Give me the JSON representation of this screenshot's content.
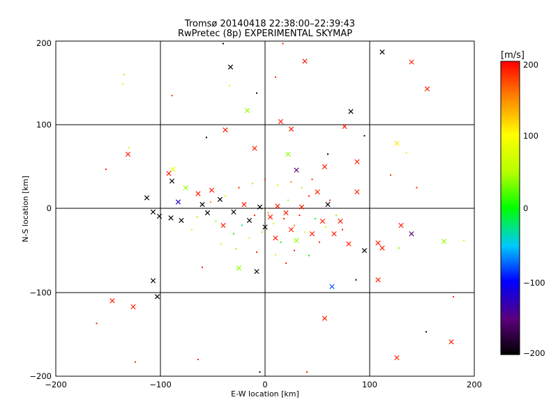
{
  "chart_data": {
    "type": "scatter",
    "title": "Tromsø 20140418 22:38:00–22:39:43",
    "subtitle": "RwPretec (8p) EXPERIMENTAL SKYMAP",
    "xlabel": "E-W location [km]",
    "ylabel": "N-S location [km]",
    "xlim": [
      -200,
      200
    ],
    "ylim": [
      -200,
      200
    ],
    "xticks": [
      "−200",
      "−100",
      "0",
      "100",
      "200"
    ],
    "yticks": [
      "−200",
      "−100",
      "0",
      "100",
      "200"
    ],
    "grid": true,
    "colorbar": {
      "label": "[m/s]",
      "range": [
        -200,
        200
      ],
      "ticks": [
        "−200",
        "−100",
        "0",
        "100",
        "200"
      ]
    },
    "series_note": "crosses and dots colored by velocity",
    "x_markers": [
      {
        "x": 112,
        "y": 187,
        "v": -200
      },
      {
        "x": 140,
        "y": 175,
        "v": 190
      },
      {
        "x": 38,
        "y": 176,
        "v": 190
      },
      {
        "x": -33,
        "y": 169,
        "v": -200
      },
      {
        "x": 155,
        "y": 143,
        "v": 190
      },
      {
        "x": -17,
        "y": 117,
        "v": 40
      },
      {
        "x": 82,
        "y": 116,
        "v": -200
      },
      {
        "x": 15,
        "y": 104,
        "v": 190
      },
      {
        "x": 76,
        "y": 98,
        "v": 190
      },
      {
        "x": -38,
        "y": 94,
        "v": 190
      },
      {
        "x": 25,
        "y": 95,
        "v": 190
      },
      {
        "x": -10,
        "y": 72,
        "v": 190
      },
      {
        "x": 126,
        "y": 78,
        "v": 110
      },
      {
        "x": -131,
        "y": 65,
        "v": 190
      },
      {
        "x": 22,
        "y": 65,
        "v": 40
      },
      {
        "x": 88,
        "y": 56,
        "v": 190
      },
      {
        "x": -88,
        "y": 47,
        "v": 90
      },
      {
        "x": -92,
        "y": 42,
        "v": 190
      },
      {
        "x": 57,
        "y": 50,
        "v": 190
      },
      {
        "x": 30,
        "y": 46,
        "v": -150
      },
      {
        "x": -89,
        "y": 33,
        "v": -200
      },
      {
        "x": -113,
        "y": 13,
        "v": -200
      },
      {
        "x": -76,
        "y": 25,
        "v": 40
      },
      {
        "x": -83,
        "y": 8,
        "v": -120
      },
      {
        "x": -64,
        "y": 18,
        "v": 190
      },
      {
        "x": -51,
        "y": 22,
        "v": 190
      },
      {
        "x": 88,
        "y": 20,
        "v": 190
      },
      {
        "x": -107,
        "y": -4,
        "v": -200
      },
      {
        "x": -101,
        "y": -9,
        "v": -200
      },
      {
        "x": -90,
        "y": -11,
        "v": -200
      },
      {
        "x": -80,
        "y": -14,
        "v": -200
      },
      {
        "x": -43,
        "y": 11,
        "v": -200
      },
      {
        "x": -30,
        "y": -4,
        "v": -200
      },
      {
        "x": -15,
        "y": -14,
        "v": -200
      },
      {
        "x": -5,
        "y": 2,
        "v": -200
      },
      {
        "x": 0,
        "y": -22,
        "v": -200
      },
      {
        "x": 5,
        "y": -10,
        "v": 190
      },
      {
        "x": 12,
        "y": 3,
        "v": 190
      },
      {
        "x": 20,
        "y": -5,
        "v": 190
      },
      {
        "x": 25,
        "y": -25,
        "v": 190
      },
      {
        "x": 35,
        "y": 2,
        "v": 190
      },
      {
        "x": 45,
        "y": -30,
        "v": 190
      },
      {
        "x": 55,
        "y": -15,
        "v": 190
      },
      {
        "x": 66,
        "y": -30,
        "v": 190
      },
      {
        "x": 72,
        "y": -15,
        "v": 190
      },
      {
        "x": 80,
        "y": -42,
        "v": 190
      },
      {
        "x": 95,
        "y": -50,
        "v": -200
      },
      {
        "x": 108,
        "y": -41,
        "v": 190
      },
      {
        "x": 112,
        "y": -47,
        "v": 190
      },
      {
        "x": 130,
        "y": -20,
        "v": 190
      },
      {
        "x": 140,
        "y": -30,
        "v": -150
      },
      {
        "x": 171,
        "y": -39,
        "v": 40
      },
      {
        "x": -25,
        "y": -71,
        "v": 40
      },
      {
        "x": -8,
        "y": -75,
        "v": -200
      },
      {
        "x": 64,
        "y": -93,
        "v": -80
      },
      {
        "x": 108,
        "y": -85,
        "v": 190
      },
      {
        "x": -107,
        "y": -86,
        "v": -200
      },
      {
        "x": -103,
        "y": -105,
        "v": -200
      },
      {
        "x": -146,
        "y": -110,
        "v": 190
      },
      {
        "x": -126,
        "y": -117,
        "v": 190
      },
      {
        "x": 57,
        "y": -131,
        "v": 190
      },
      {
        "x": 178,
        "y": -159,
        "v": 190
      },
      {
        "x": 126,
        "y": -178,
        "v": 190
      },
      {
        "x": -55,
        "y": -5,
        "v": -200
      },
      {
        "x": -40,
        "y": -20,
        "v": 190
      },
      {
        "x": -20,
        "y": 5,
        "v": 190
      },
      {
        "x": 10,
        "y": -35,
        "v": 190
      },
      {
        "x": 30,
        "y": -38,
        "v": 40
      },
      {
        "x": 50,
        "y": 20,
        "v": 190
      },
      {
        "x": 60,
        "y": 5,
        "v": -200
      },
      {
        "x": -60,
        "y": 5,
        "v": -200
      }
    ],
    "dot_markers": [
      {
        "x": -135,
        "y": 160,
        "v": 40
      },
      {
        "x": -136,
        "y": 149,
        "v": 60
      },
      {
        "x": -89,
        "y": 135,
        "v": 190
      },
      {
        "x": -8,
        "y": 138,
        "v": -200
      },
      {
        "x": -40,
        "y": 197,
        "v": -200
      },
      {
        "x": 17,
        "y": 197,
        "v": 190
      },
      {
        "x": -34,
        "y": 147,
        "v": 110
      },
      {
        "x": 10,
        "y": 157,
        "v": 190
      },
      {
        "x": -56,
        "y": 85,
        "v": -200
      },
      {
        "x": -130,
        "y": 73,
        "v": 60
      },
      {
        "x": -152,
        "y": 47,
        "v": 190
      },
      {
        "x": 95,
        "y": 87,
        "v": -200
      },
      {
        "x": 135,
        "y": 67,
        "v": 110
      },
      {
        "x": 60,
        "y": 65,
        "v": -200
      },
      {
        "x": 120,
        "y": 40,
        "v": 190
      },
      {
        "x": 145,
        "y": 25,
        "v": 190
      },
      {
        "x": 190,
        "y": -38,
        "v": 60
      },
      {
        "x": 128,
        "y": -47,
        "v": 40
      },
      {
        "x": 87,
        "y": -85,
        "v": -200
      },
      {
        "x": 180,
        "y": -105,
        "v": 190
      },
      {
        "x": 154,
        "y": -147,
        "v": -200
      },
      {
        "x": -161,
        "y": -137,
        "v": 190
      },
      {
        "x": -124,
        "y": -183,
        "v": 190
      },
      {
        "x": -64,
        "y": -180,
        "v": 190
      },
      {
        "x": -5,
        "y": -195,
        "v": -200
      },
      {
        "x": 40,
        "y": -195,
        "v": 190
      },
      {
        "x": -60,
        "y": -70,
        "v": 190
      },
      {
        "x": -47,
        "y": -15,
        "v": 40
      },
      {
        "x": -30,
        "y": -30,
        "v": 0
      },
      {
        "x": -22,
        "y": -20,
        "v": -40
      },
      {
        "x": -15,
        "y": -35,
        "v": 60
      },
      {
        "x": -10,
        "y": -8,
        "v": 190
      },
      {
        "x": -3,
        "y": -28,
        "v": 40
      },
      {
        "x": 3,
        "y": -5,
        "v": 150
      },
      {
        "x": 8,
        "y": -18,
        "v": 60
      },
      {
        "x": 15,
        "y": -40,
        "v": 0
      },
      {
        "x": 18,
        "y": -12,
        "v": 190
      },
      {
        "x": 22,
        "y": 10,
        "v": 40
      },
      {
        "x": 28,
        "y": -20,
        "v": 150
      },
      {
        "x": 33,
        "y": -8,
        "v": 190
      },
      {
        "x": 38,
        "y": -28,
        "v": 60
      },
      {
        "x": 42,
        "y": 15,
        "v": 190
      },
      {
        "x": 48,
        "y": -12,
        "v": 0
      },
      {
        "x": 52,
        "y": -40,
        "v": 190
      },
      {
        "x": 58,
        "y": -22,
        "v": 60
      },
      {
        "x": 62,
        "y": 10,
        "v": 190
      },
      {
        "x": 68,
        "y": -8,
        "v": 40
      },
      {
        "x": 74,
        "y": -25,
        "v": 190
      },
      {
        "x": -70,
        "y": -25,
        "v": 60
      },
      {
        "x": -65,
        "y": -10,
        "v": 40
      },
      {
        "x": -52,
        "y": 8,
        "v": 150
      },
      {
        "x": -38,
        "y": 15,
        "v": 60
      },
      {
        "x": -25,
        "y": 25,
        "v": 190
      },
      {
        "x": -12,
        "y": 30,
        "v": 40
      },
      {
        "x": 0,
        "y": 35,
        "v": 190
      },
      {
        "x": 12,
        "y": 28,
        "v": 60
      },
      {
        "x": 25,
        "y": 32,
        "v": 150
      },
      {
        "x": 35,
        "y": 25,
        "v": 40
      },
      {
        "x": 45,
        "y": 35,
        "v": 190
      },
      {
        "x": -42,
        "y": -42,
        "v": 60
      },
      {
        "x": -28,
        "y": -48,
        "v": 40
      },
      {
        "x": -8,
        "y": -52,
        "v": 190
      },
      {
        "x": 10,
        "y": -55,
        "v": 60
      },
      {
        "x": 28,
        "y": -50,
        "v": 190
      },
      {
        "x": 42,
        "y": -56,
        "v": 0
      },
      {
        "x": 20,
        "y": -65,
        "v": 190
      }
    ]
  }
}
